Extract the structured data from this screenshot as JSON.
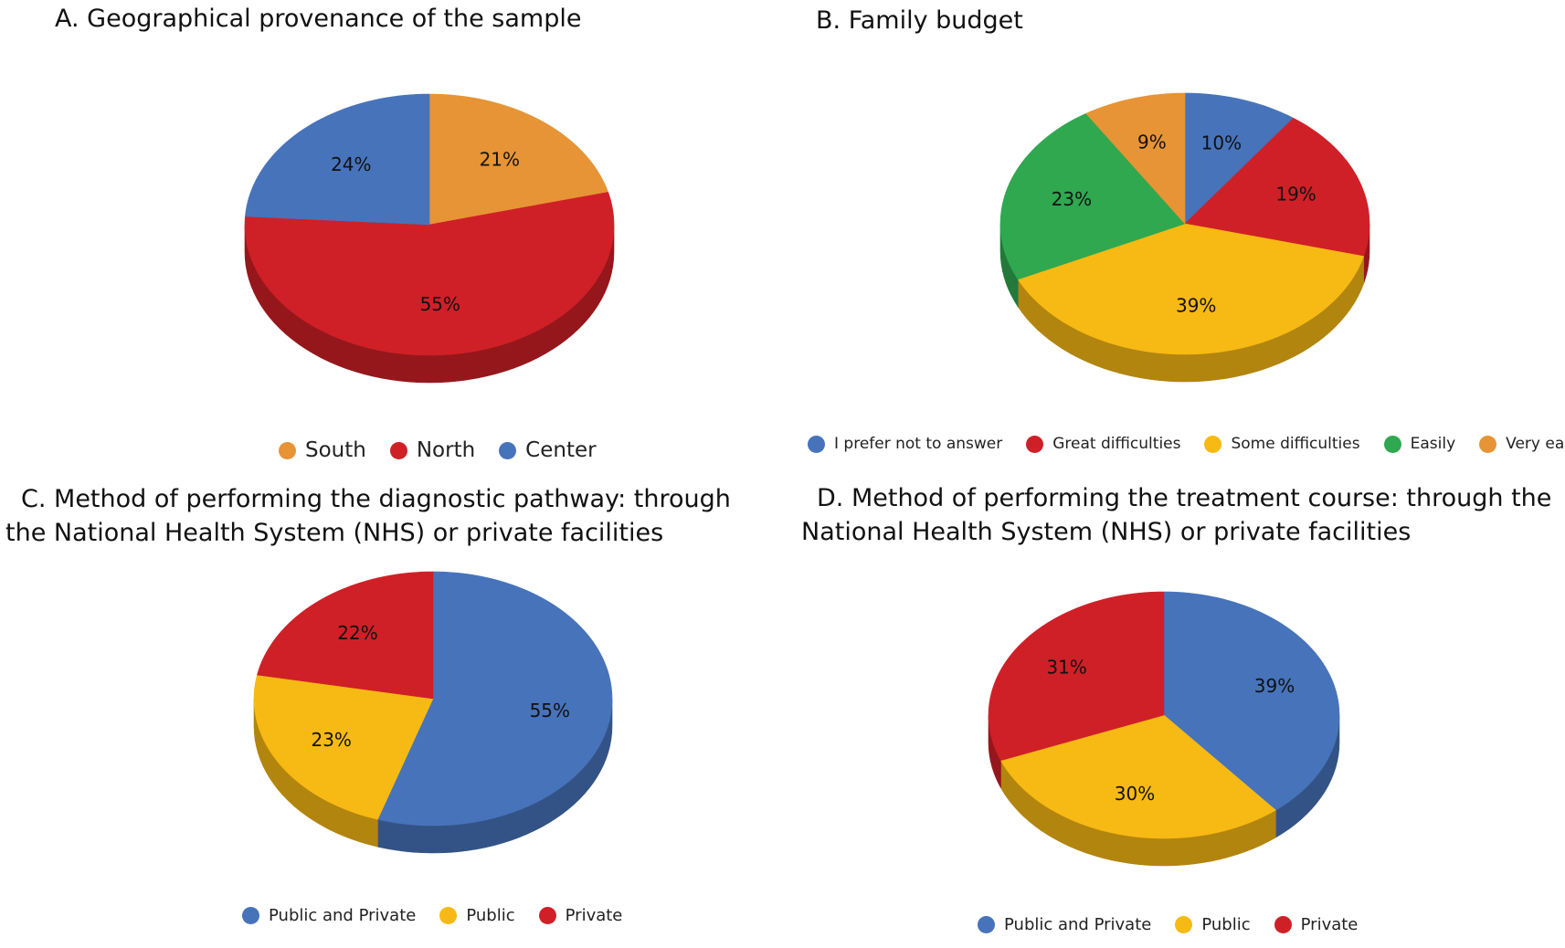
{
  "chart_data": [
    {
      "id": "A",
      "type": "pie",
      "title": "A. Geographical provenance of the sample",
      "categories": [
        "South",
        "North",
        "Center"
      ],
      "values": [
        21,
        55,
        24
      ],
      "labels": [
        "21%",
        "55%",
        "24%"
      ],
      "colors": [
        "#E69435",
        "#CF2027",
        "#4773BA"
      ],
      "legend": [
        "South",
        "North",
        "Center"
      ],
      "legend_position": "bottom"
    },
    {
      "id": "B",
      "type": "pie",
      "title": "B. Family budget",
      "categories": [
        "I prefer not to answer",
        "Great difficulties",
        "Some difficulties",
        "Easily",
        "Very easily"
      ],
      "values": [
        10,
        19,
        39,
        23,
        9
      ],
      "labels": [
        "10%",
        "19%",
        "39%",
        "23%",
        "9%"
      ],
      "colors": [
        "#4773BA",
        "#CF2027",
        "#F7B913",
        "#2FA850",
        "#E69435"
      ],
      "legend": [
        "I prefer not to answer",
        "Great difficulties",
        "Some difficulties",
        "Easily",
        "Very easily"
      ],
      "legend_position": "bottom"
    },
    {
      "id": "C",
      "type": "pie",
      "title": "C. Method of performing the diagnostic pathway: through the National Health System (NHS) or private facilities",
      "title_lines": [
        "C. Method of performing the diagnostic pathway: through",
        "the National Health System (NHS) or private facilities"
      ],
      "categories": [
        "Public and Private",
        "Public",
        "Private"
      ],
      "values": [
        55,
        23,
        22
      ],
      "labels": [
        "55%",
        "23%",
        "22%"
      ],
      "colors": [
        "#4773BA",
        "#F7B913",
        "#CF2027"
      ],
      "legend": [
        "Public and Private",
        "Public",
        "Private"
      ],
      "legend_position": "bottom"
    },
    {
      "id": "D",
      "type": "pie",
      "title": "D. Method of performing the treatment course: through the National Health System (NHS) or private facilities",
      "title_lines": [
        "D. Method of performing the treatment course: through the",
        "National Health System (NHS) or private facilities"
      ],
      "categories": [
        "Public and Private",
        "Public",
        "Private"
      ],
      "values": [
        39,
        30,
        31
      ],
      "labels": [
        "39%",
        "30%",
        "31%"
      ],
      "colors": [
        "#4773BA",
        "#F7B913",
        "#CF2027"
      ],
      "legend": [
        "Public and Private",
        "Public",
        "Private"
      ],
      "legend_position": "bottom"
    }
  ]
}
